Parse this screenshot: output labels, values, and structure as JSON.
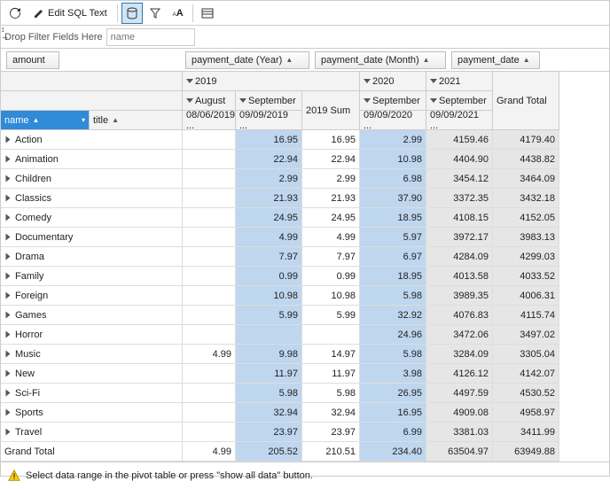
{
  "toolbar": {
    "edit_label": "Edit SQL Text"
  },
  "filter": {
    "drop_text": "Drop Filter Fields Here",
    "placeholder": "name"
  },
  "fields": {
    "amount": "amount",
    "year": "payment_date (Year)",
    "month": "payment_date (Month)",
    "date": "payment_date",
    "name": "name",
    "title": "title"
  },
  "hdr": {
    "y2019": "2019",
    "y2020": "2020",
    "y2021": "2021",
    "august": "August",
    "september": "September",
    "sum2019": "2019 Sum",
    "grand_total": "Grand Total",
    "d1": "08/06/2019 ...",
    "d2": "09/09/2019 ...",
    "d3": "09/09/2020 ...",
    "d4": "09/09/2021 ..."
  },
  "rows": [
    {
      "name": "Action",
      "aug": "",
      "sep": "16.95",
      "sum": "16.95",
      "s2020": "2.99",
      "s2021": "4159.46",
      "gt": "4179.40"
    },
    {
      "name": "Animation",
      "aug": "",
      "sep": "22.94",
      "sum": "22.94",
      "s2020": "10.98",
      "s2021": "4404.90",
      "gt": "4438.82"
    },
    {
      "name": "Children",
      "aug": "",
      "sep": "2.99",
      "sum": "2.99",
      "s2020": "6.98",
      "s2021": "3454.12",
      "gt": "3464.09"
    },
    {
      "name": "Classics",
      "aug": "",
      "sep": "21.93",
      "sum": "21.93",
      "s2020": "37.90",
      "s2021": "3372.35",
      "gt": "3432.18"
    },
    {
      "name": "Comedy",
      "aug": "",
      "sep": "24.95",
      "sum": "24.95",
      "s2020": "18.95",
      "s2021": "4108.15",
      "gt": "4152.05"
    },
    {
      "name": "Documentary",
      "aug": "",
      "sep": "4.99",
      "sum": "4.99",
      "s2020": "5.97",
      "s2021": "3972.17",
      "gt": "3983.13"
    },
    {
      "name": "Drama",
      "aug": "",
      "sep": "7.97",
      "sum": "7.97",
      "s2020": "6.97",
      "s2021": "4284.09",
      "gt": "4299.03"
    },
    {
      "name": "Family",
      "aug": "",
      "sep": "0.99",
      "sum": "0.99",
      "s2020": "18.95",
      "s2021": "4013.58",
      "gt": "4033.52"
    },
    {
      "name": "Foreign",
      "aug": "",
      "sep": "10.98",
      "sum": "10.98",
      "s2020": "5.98",
      "s2021": "3989.35",
      "gt": "4006.31"
    },
    {
      "name": "Games",
      "aug": "",
      "sep": "5.99",
      "sum": "5.99",
      "s2020": "32.92",
      "s2021": "4076.83",
      "gt": "4115.74"
    },
    {
      "name": "Horror",
      "aug": "",
      "sep": "",
      "sum": "",
      "s2020": "24.96",
      "s2021": "3472.06",
      "gt": "3497.02"
    },
    {
      "name": "Music",
      "aug": "4.99",
      "sep": "9.98",
      "sum": "14.97",
      "s2020": "5.98",
      "s2021": "3284.09",
      "gt": "3305.04"
    },
    {
      "name": "New",
      "aug": "",
      "sep": "11.97",
      "sum": "11.97",
      "s2020": "3.98",
      "s2021": "4126.12",
      "gt": "4142.07"
    },
    {
      "name": "Sci-Fi",
      "aug": "",
      "sep": "5.98",
      "sum": "5.98",
      "s2020": "26.95",
      "s2021": "4497.59",
      "gt": "4530.52"
    },
    {
      "name": "Sports",
      "aug": "",
      "sep": "32.94",
      "sum": "32.94",
      "s2020": "16.95",
      "s2021": "4909.08",
      "gt": "4958.97"
    },
    {
      "name": "Travel",
      "aug": "",
      "sep": "23.97",
      "sum": "23.97",
      "s2020": "6.99",
      "s2021": "3381.03",
      "gt": "3411.99"
    }
  ],
  "totals": {
    "label": "Grand Total",
    "aug": "4.99",
    "sep": "205.52",
    "sum": "210.51",
    "s2020": "234.40",
    "s2021": "63504.97",
    "gt": "63949.88"
  },
  "status": {
    "text": "Select data range in the pivot table or press \"show all data\" button."
  },
  "colors": {
    "sel": "#bfd6ef",
    "name_hdr": "#2f8ad8"
  }
}
